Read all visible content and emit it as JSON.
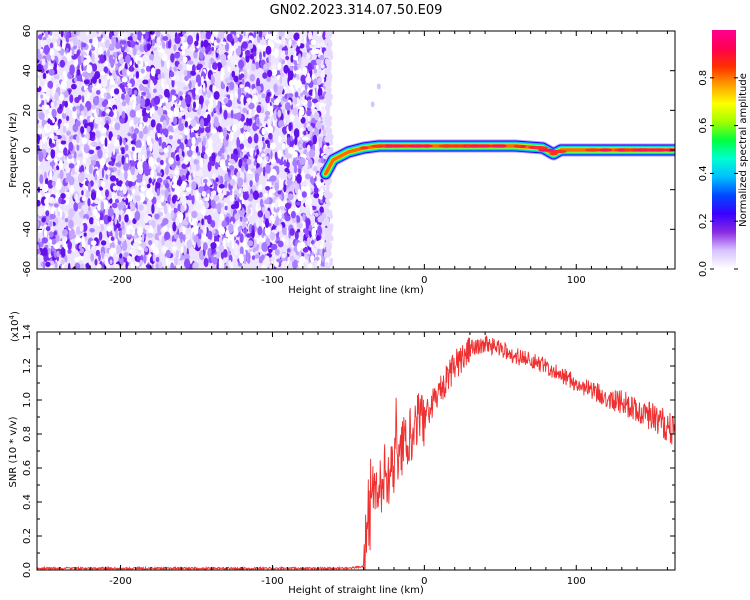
{
  "figure": {
    "title": "GN02.2023.314.07.50.E09"
  },
  "colorbar": {
    "label": "Normalized spectral amplitude",
    "ticks": [
      {
        "value": 0.0,
        "label": "0.0"
      },
      {
        "value": 0.2,
        "label": "0.2"
      },
      {
        "value": 0.4,
        "label": "0.4"
      },
      {
        "value": 0.6,
        "label": "0.6"
      },
      {
        "value": 0.8,
        "label": "0.8"
      }
    ],
    "range": [
      0,
      1
    ],
    "colormap": [
      "#ffffff",
      "#d8c4ff",
      "#8a2be2",
      "#3a00ff",
      "#0048ff",
      "#00bfff",
      "#00ffd0",
      "#00ff40",
      "#a0ff00",
      "#ffff00",
      "#ffa000",
      "#ff3000",
      "#ff0050",
      "#ff0090"
    ]
  },
  "chart_data": [
    {
      "type": "heatmap",
      "xlabel": "Height of straight line (km)",
      "ylabel": "Frequency (Hz)",
      "xlim": [
        -255,
        165
      ],
      "ylim": [
        -60,
        60
      ],
      "x_ticks": [
        {
          "value": -200,
          "label": "-200"
        },
        {
          "value": -100,
          "label": "-100"
        },
        {
          "value": 0,
          "label": "0"
        },
        {
          "value": 100,
          "label": "100"
        }
      ],
      "y_ticks": [
        {
          "value": -60,
          "label": "-60"
        },
        {
          "value": -40,
          "label": "-40"
        },
        {
          "value": -20,
          "label": "-20"
        },
        {
          "value": 0,
          "label": "0"
        },
        {
          "value": 20,
          "label": "20"
        },
        {
          "value": 40,
          "label": "40"
        },
        {
          "value": 60,
          "label": "60"
        }
      ],
      "noise_region_x": [
        -255,
        -63
      ],
      "signal_band": {
        "x": [
          -65,
          -60,
          -50,
          -40,
          -30,
          0,
          30,
          60,
          78,
          85,
          90,
          120,
          165
        ],
        "frequency": [
          -12,
          -5,
          -1,
          1,
          2,
          2,
          2,
          2,
          1,
          -2,
          0,
          0,
          0
        ]
      }
    },
    {
      "type": "line",
      "xlabel": "Height of straight line (km)",
      "ylabel": "SNR (10 * v/v)",
      "y_multiplier_label": "(x10",
      "y_multiplier_exp": "4",
      "y_multiplier_close": ")",
      "xlim": [
        -255,
        165
      ],
      "ylim": [
        0,
        1.4
      ],
      "x_ticks": [
        {
          "value": -200,
          "label": "-200"
        },
        {
          "value": -100,
          "label": "-100"
        },
        {
          "value": 0,
          "label": "0"
        },
        {
          "value": 100,
          "label": "100"
        }
      ],
      "y_ticks": [
        {
          "value": 0.0,
          "label": "0.0"
        },
        {
          "value": 0.2,
          "label": "0.2"
        },
        {
          "value": 0.4,
          "label": "0.4"
        },
        {
          "value": 0.6,
          "label": "0.6"
        },
        {
          "value": 0.8,
          "label": "0.8"
        },
        {
          "value": 1.0,
          "label": "1.0"
        },
        {
          "value": 1.2,
          "label": "1.2"
        },
        {
          "value": 1.4,
          "label": "1.4"
        }
      ],
      "series": [
        {
          "color": "#ee3030",
          "x": [
            -255,
            -200,
            -150,
            -100,
            -50,
            -40,
            -35,
            -30,
            -20,
            -10,
            0,
            10,
            20,
            30,
            40,
            50,
            60,
            80,
            100,
            120,
            140,
            160,
            165
          ],
          "values": [
            0.01,
            0.01,
            0.01,
            0.01,
            0.01,
            0.02,
            0.3,
            0.5,
            0.6,
            0.8,
            0.9,
            1.05,
            1.2,
            1.3,
            1.33,
            1.3,
            1.26,
            1.2,
            1.1,
            1.02,
            0.95,
            0.85,
            0.8
          ]
        }
      ]
    }
  ]
}
